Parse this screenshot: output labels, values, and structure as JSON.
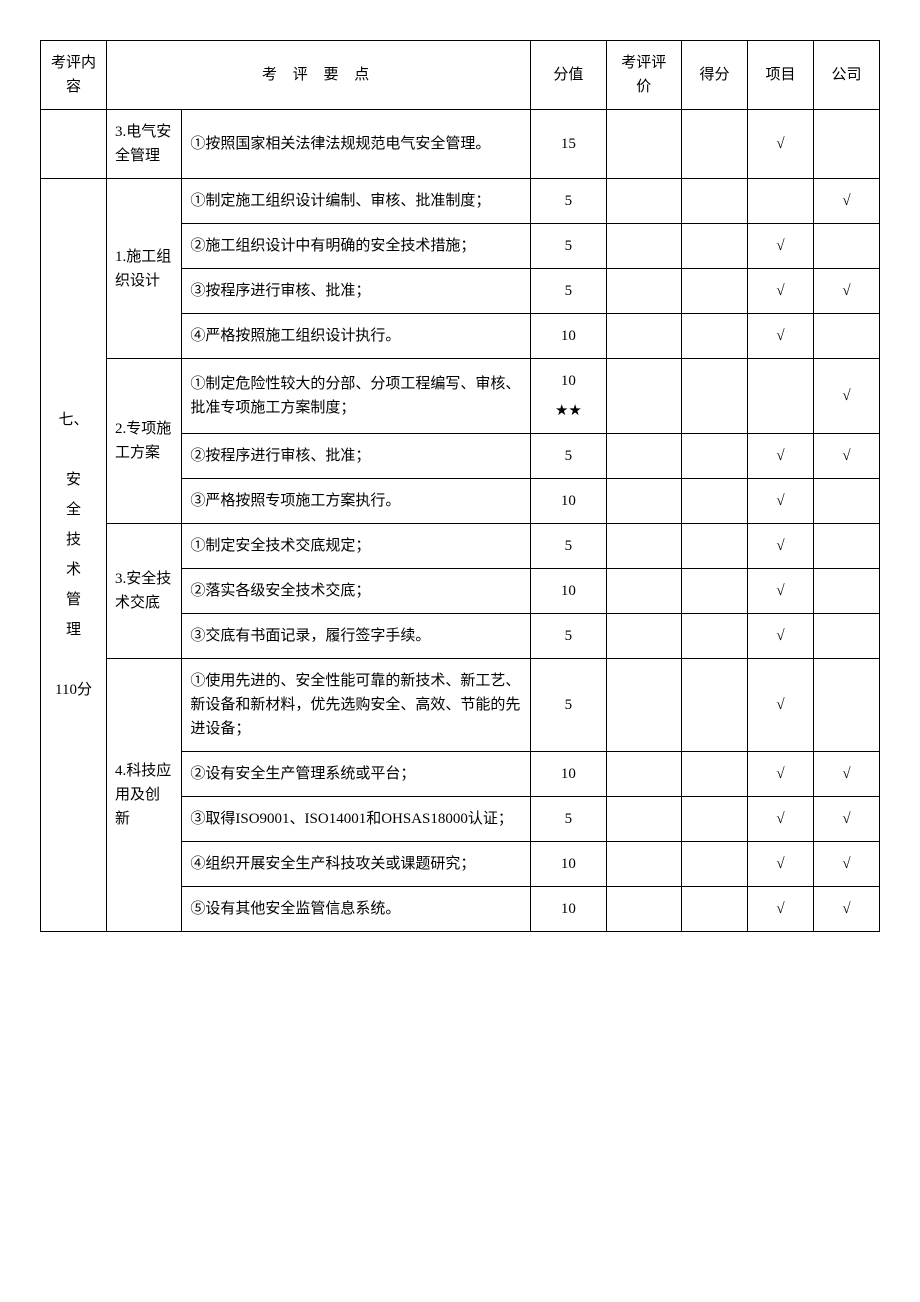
{
  "headers": {
    "category": "考评内容",
    "points": "考 评 要 点",
    "score": "分值",
    "eval": "考评评价",
    "defen": "得分",
    "project": "项目",
    "company": "公司"
  },
  "check_mark": "√",
  "star_mark": "★★",
  "row_prev_sub": "3.电气安全管理",
  "row_prev_point": "①按照国家相关法律法规规范电气安全管理。",
  "row_prev_score": "15",
  "row_prev_proj": "√",
  "row_prev_comp": "",
  "category7_title": "七、",
  "category7_name": "安全技术管理",
  "category7_score": "110分",
  "sub1": "1.施工组织设计",
  "sub2": "2.专项施工方案",
  "sub3": "3.安全技术交底",
  "sub4": "4.科技应用及创新",
  "rows": [
    {
      "point": "①制定施工组织设计编制、审核、批准制度；",
      "score": "5",
      "proj": "",
      "comp": "√"
    },
    {
      "point": "②施工组织设计中有明确的安全技术措施；",
      "score": "5",
      "proj": "√",
      "comp": ""
    },
    {
      "point": "③按程序进行审核、批准；",
      "score": "5",
      "proj": "√",
      "comp": "√"
    },
    {
      "point": "④严格按照施工组织设计执行。",
      "score": "10",
      "proj": "√",
      "comp": ""
    },
    {
      "point": "①制定危险性较大的分部、分项工程编写、审核、批准专项施工方案制度；",
      "score": "",
      "proj": "",
      "comp": "√"
    },
    {
      "point": "②按程序进行审核、批准；",
      "score": "5",
      "proj": "√",
      "comp": "√"
    },
    {
      "point": "③严格按照专项施工方案执行。",
      "score": "10",
      "proj": "√",
      "comp": ""
    },
    {
      "point": "①制定安全技术交底规定；",
      "score": "5",
      "proj": "√",
      "comp": ""
    },
    {
      "point": "②落实各级安全技术交底；",
      "score": "10",
      "proj": "√",
      "comp": ""
    },
    {
      "point": "③交底有书面记录，履行签字手续。",
      "score": "5",
      "proj": "√",
      "comp": ""
    },
    {
      "point": "①使用先进的、安全性能可靠的新技术、新工艺、新设备和新材料，优先选购安全、高效、节能的先进设备；",
      "score": "5",
      "proj": "√",
      "comp": ""
    },
    {
      "point": "②设有安全生产管理系统或平台；",
      "score": "10",
      "proj": "√",
      "comp": "√"
    },
    {
      "point": "③取得ISO9001、ISO14001和OHSAS18000认证；",
      "score": "5",
      "proj": "√",
      "comp": "√"
    },
    {
      "point": "④组织开展安全生产科技攻关或课题研究；",
      "score": "10",
      "proj": "√",
      "comp": "√"
    },
    {
      "point": "⑤设有其他安全监管信息系统。",
      "score": "10",
      "proj": "√",
      "comp": "√"
    }
  ],
  "score_10": "10"
}
